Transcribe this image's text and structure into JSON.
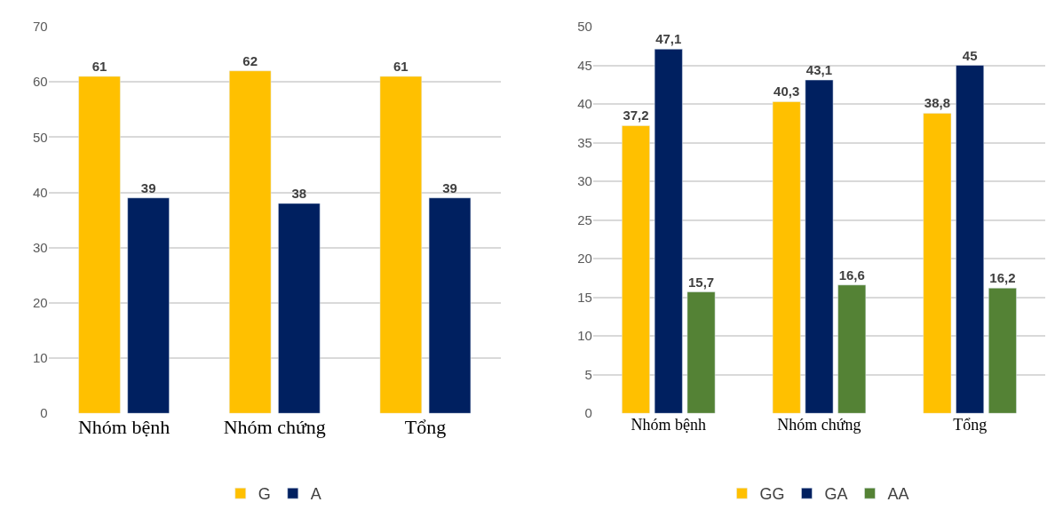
{
  "chart_data": [
    {
      "type": "bar",
      "categories": [
        "Nhóm bệnh",
        "Nhóm chứng",
        "Tổng"
      ],
      "ylim": [
        0,
        70
      ],
      "yticks": [
        0,
        10,
        20,
        30,
        40,
        50,
        60,
        70
      ],
      "grid": "y",
      "legend": "bottom",
      "series": [
        {
          "name": "G",
          "color": "#ffc000",
          "values": [
            61,
            62,
            61
          ],
          "value_labels": [
            "61",
            "62",
            "61"
          ]
        },
        {
          "name": "A",
          "color": "#002060",
          "values": [
            39,
            38,
            39
          ],
          "value_labels": [
            "39",
            "38",
            "39"
          ]
        }
      ]
    },
    {
      "type": "bar",
      "categories": [
        "Nhóm bệnh",
        "Nhóm chứng",
        "Tổng"
      ],
      "ylim": [
        0,
        50
      ],
      "yticks": [
        0,
        5,
        10,
        15,
        20,
        25,
        30,
        35,
        40,
        45,
        50
      ],
      "grid": "y",
      "legend": "bottom",
      "series": [
        {
          "name": "GG",
          "color": "#ffc000",
          "values": [
            37.2,
            40.3,
            38.8
          ],
          "value_labels": [
            "37,2",
            "40,3",
            "38,8"
          ]
        },
        {
          "name": "GA",
          "color": "#002060",
          "values": [
            47.1,
            43.1,
            45
          ],
          "value_labels": [
            "47,1",
            "43,1",
            "45"
          ]
        },
        {
          "name": "AA",
          "color": "#548235",
          "values": [
            15.7,
            16.6,
            16.2
          ],
          "value_labels": [
            "15,7",
            "16,6",
            "16,2"
          ]
        }
      ]
    }
  ]
}
